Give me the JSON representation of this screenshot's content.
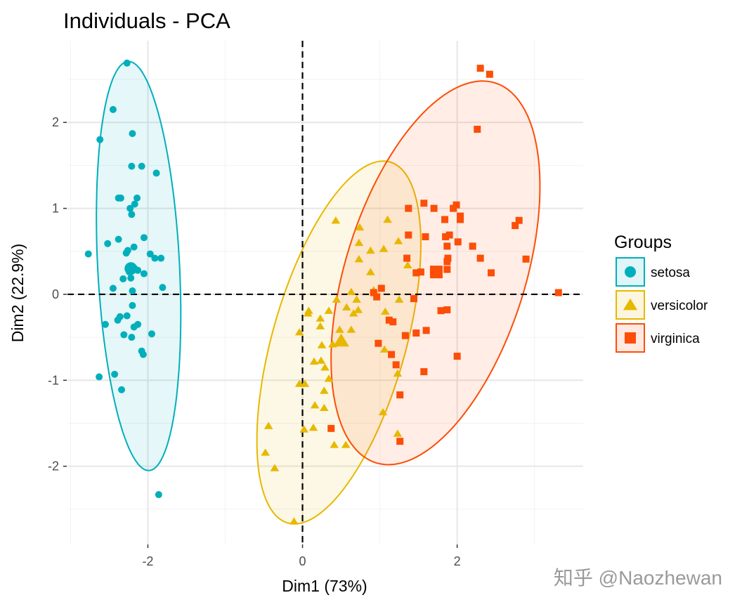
{
  "chart_data": {
    "type": "scatter",
    "title": "Individuals - PCA",
    "xlabel": "Dim1 (73%)",
    "ylabel": "Dim2 (22.9%)",
    "xlim": [
      -3.04,
      3.63
    ],
    "ylim": [
      -2.91,
      2.95
    ],
    "x_ticks": [
      -2,
      0,
      2
    ],
    "y_ticks": [
      -2,
      -1,
      0,
      1,
      2
    ],
    "x_tick_labels": [
      "-2",
      "0",
      "2"
    ],
    "y_tick_labels": [
      "-2",
      "-1",
      "0",
      "1",
      "2"
    ],
    "grid": true,
    "reference_lines": {
      "x": 0,
      "y": 0,
      "style": "dashed"
    },
    "legend": {
      "title": "Groups",
      "placement": "right"
    },
    "series": [
      {
        "name": "setosa",
        "color": "#00AFBB",
        "shape": "circle",
        "centroid": [
          -2.22,
          0.3
        ],
        "ellipse": {
          "center": [
            -2.12,
            0.33
          ],
          "axis1": [
            -0.13,
            2.38
          ],
          "axis2": [
            0.53,
            0.0
          ]
        },
        "points": [
          [
            -2.27,
            2.69
          ],
          [
            -2.45,
            2.15
          ],
          [
            -2.62,
            1.8
          ],
          [
            -2.2,
            1.87
          ],
          [
            -2.21,
            1.49
          ],
          [
            -2.08,
            1.49
          ],
          [
            -1.89,
            1.41
          ],
          [
            -2.38,
            1.12
          ],
          [
            -2.35,
            1.12
          ],
          [
            -2.14,
            1.12
          ],
          [
            -2.23,
            1.0
          ],
          [
            -2.17,
            1.05
          ],
          [
            -2.21,
            0.93
          ],
          [
            -2.52,
            0.59
          ],
          [
            -2.38,
            0.64
          ],
          [
            -2.05,
            0.66
          ],
          [
            -2.77,
            0.47
          ],
          [
            -2.28,
            0.48
          ],
          [
            -2.26,
            0.51
          ],
          [
            -2.18,
            0.55
          ],
          [
            -1.97,
            0.47
          ],
          [
            -1.91,
            0.42
          ],
          [
            -1.83,
            0.42
          ],
          [
            -2.22,
            0.32
          ],
          [
            -2.17,
            0.3
          ],
          [
            -2.24,
            0.26
          ],
          [
            -2.13,
            0.28
          ],
          [
            -2.05,
            0.24
          ],
          [
            -2.32,
            0.18
          ],
          [
            -2.22,
            0.19
          ],
          [
            -2.45,
            0.07
          ],
          [
            -2.2,
            0.04
          ],
          [
            -1.81,
            0.08
          ],
          [
            -2.2,
            -0.13
          ],
          [
            -2.39,
            -0.3
          ],
          [
            -2.36,
            -0.26
          ],
          [
            -2.27,
            -0.25
          ],
          [
            -2.55,
            -0.35
          ],
          [
            -2.18,
            -0.38
          ],
          [
            -2.13,
            -0.35
          ],
          [
            -2.31,
            -0.47
          ],
          [
            -1.95,
            -0.46
          ],
          [
            -2.21,
            -0.5
          ],
          [
            -2.08,
            -0.66
          ],
          [
            -2.06,
            -0.7
          ],
          [
            -2.63,
            -0.96
          ],
          [
            -2.43,
            -0.93
          ],
          [
            -2.34,
            -1.11
          ],
          [
            -1.86,
            -2.33
          ]
        ]
      },
      {
        "name": "versicolor",
        "color": "#E7B800",
        "shape": "triangle",
        "centroid": [
          0.5,
          -0.54
        ],
        "ellipse": {
          "center": [
            0.47,
            -0.56
          ],
          "axis1": [
            0.66,
            2.1
          ],
          "axis2": [
            0.83,
            -0.21
          ]
        },
        "points": [
          [
            0.43,
            0.86
          ],
          [
            1.1,
            0.87
          ],
          [
            0.74,
            0.78
          ],
          [
            0.73,
            0.6
          ],
          [
            0.88,
            0.51
          ],
          [
            1.05,
            0.53
          ],
          [
            1.24,
            0.62
          ],
          [
            0.73,
            0.41
          ],
          [
            0.88,
            0.26
          ],
          [
            1.36,
            0.34
          ],
          [
            0.63,
            0.03
          ],
          [
            0.92,
            0.05
          ],
          [
            0.44,
            -0.06
          ],
          [
            0.7,
            -0.06
          ],
          [
            1.25,
            -0.06
          ],
          [
            0.08,
            -0.19
          ],
          [
            0.07,
            -0.22
          ],
          [
            0.34,
            -0.19
          ],
          [
            0.57,
            -0.15
          ],
          [
            0.66,
            -0.22
          ],
          [
            0.72,
            -0.18
          ],
          [
            1.07,
            -0.2
          ],
          [
            0.23,
            -0.28
          ],
          [
            0.23,
            -0.37
          ],
          [
            0.48,
            -0.41
          ],
          [
            0.63,
            -0.41
          ],
          [
            -0.04,
            -0.44
          ],
          [
            0.25,
            -0.59
          ],
          [
            0.39,
            -0.58
          ],
          [
            0.15,
            -0.78
          ],
          [
            0.24,
            -0.77
          ],
          [
            0.29,
            -0.85
          ],
          [
            1.06,
            -0.64
          ],
          [
            1.23,
            -0.92
          ],
          [
            0.34,
            -0.98
          ],
          [
            -0.04,
            -1.04
          ],
          [
            0.03,
            -1.04
          ],
          [
            0.28,
            -1.12
          ],
          [
            0.16,
            -1.29
          ],
          [
            0.28,
            -1.32
          ],
          [
            1.04,
            -1.37
          ],
          [
            -0.44,
            -1.53
          ],
          [
            0.02,
            -1.57
          ],
          [
            0.14,
            -1.55
          ],
          [
            0.41,
            -1.75
          ],
          [
            0.56,
            -1.75
          ],
          [
            1.23,
            -1.62
          ],
          [
            -0.48,
            -1.84
          ],
          [
            -0.36,
            -2.02
          ],
          [
            -0.11,
            -2.64
          ]
        ]
      },
      {
        "name": "virginica",
        "color": "#FC4E07",
        "shape": "square",
        "centroid": [
          1.73,
          0.26
        ],
        "ellipse": {
          "center": [
            1.72,
            0.25
          ],
          "axis1": [
            0.77,
            2.21
          ],
          "axis2": [
            1.11,
            -0.31
          ]
        },
        "points": [
          [
            2.3,
            2.63
          ],
          [
            2.42,
            2.56
          ],
          [
            2.26,
            1.92
          ],
          [
            1.37,
            1.0
          ],
          [
            1.57,
            1.06
          ],
          [
            1.7,
            1.0
          ],
          [
            1.95,
            1.0
          ],
          [
            1.99,
            1.04
          ],
          [
            1.84,
            0.87
          ],
          [
            2.04,
            0.91
          ],
          [
            2.04,
            0.87
          ],
          [
            2.75,
            0.8
          ],
          [
            2.8,
            0.86
          ],
          [
            1.37,
            0.69
          ],
          [
            1.59,
            0.67
          ],
          [
            1.85,
            0.67
          ],
          [
            1.9,
            0.69
          ],
          [
            1.87,
            0.56
          ],
          [
            2.01,
            0.61
          ],
          [
            2.2,
            0.56
          ],
          [
            1.35,
            0.42
          ],
          [
            1.88,
            0.42
          ],
          [
            1.87,
            0.38
          ],
          [
            2.3,
            0.42
          ],
          [
            2.89,
            0.41
          ],
          [
            1.47,
            0.25
          ],
          [
            1.53,
            0.26
          ],
          [
            1.87,
            0.29
          ],
          [
            2.44,
            0.25
          ],
          [
            1.02,
            0.07
          ],
          [
            0.92,
            0.02
          ],
          [
            0.96,
            -0.03
          ],
          [
            1.44,
            -0.05
          ],
          [
            3.31,
            0.02
          ],
          [
            1.79,
            -0.19
          ],
          [
            1.87,
            -0.18
          ],
          [
            1.12,
            -0.3
          ],
          [
            1.17,
            -0.32
          ],
          [
            1.33,
            -0.48
          ],
          [
            1.47,
            -0.45
          ],
          [
            1.6,
            -0.42
          ],
          [
            0.98,
            -0.57
          ],
          [
            1.15,
            -0.7
          ],
          [
            1.21,
            -0.82
          ],
          [
            1.57,
            -0.9
          ],
          [
            2.0,
            -0.72
          ],
          [
            1.26,
            -1.17
          ],
          [
            0.37,
            -1.56
          ],
          [
            1.26,
            -1.71
          ]
        ]
      }
    ]
  },
  "watermark": "知乎 @Naozhewan"
}
